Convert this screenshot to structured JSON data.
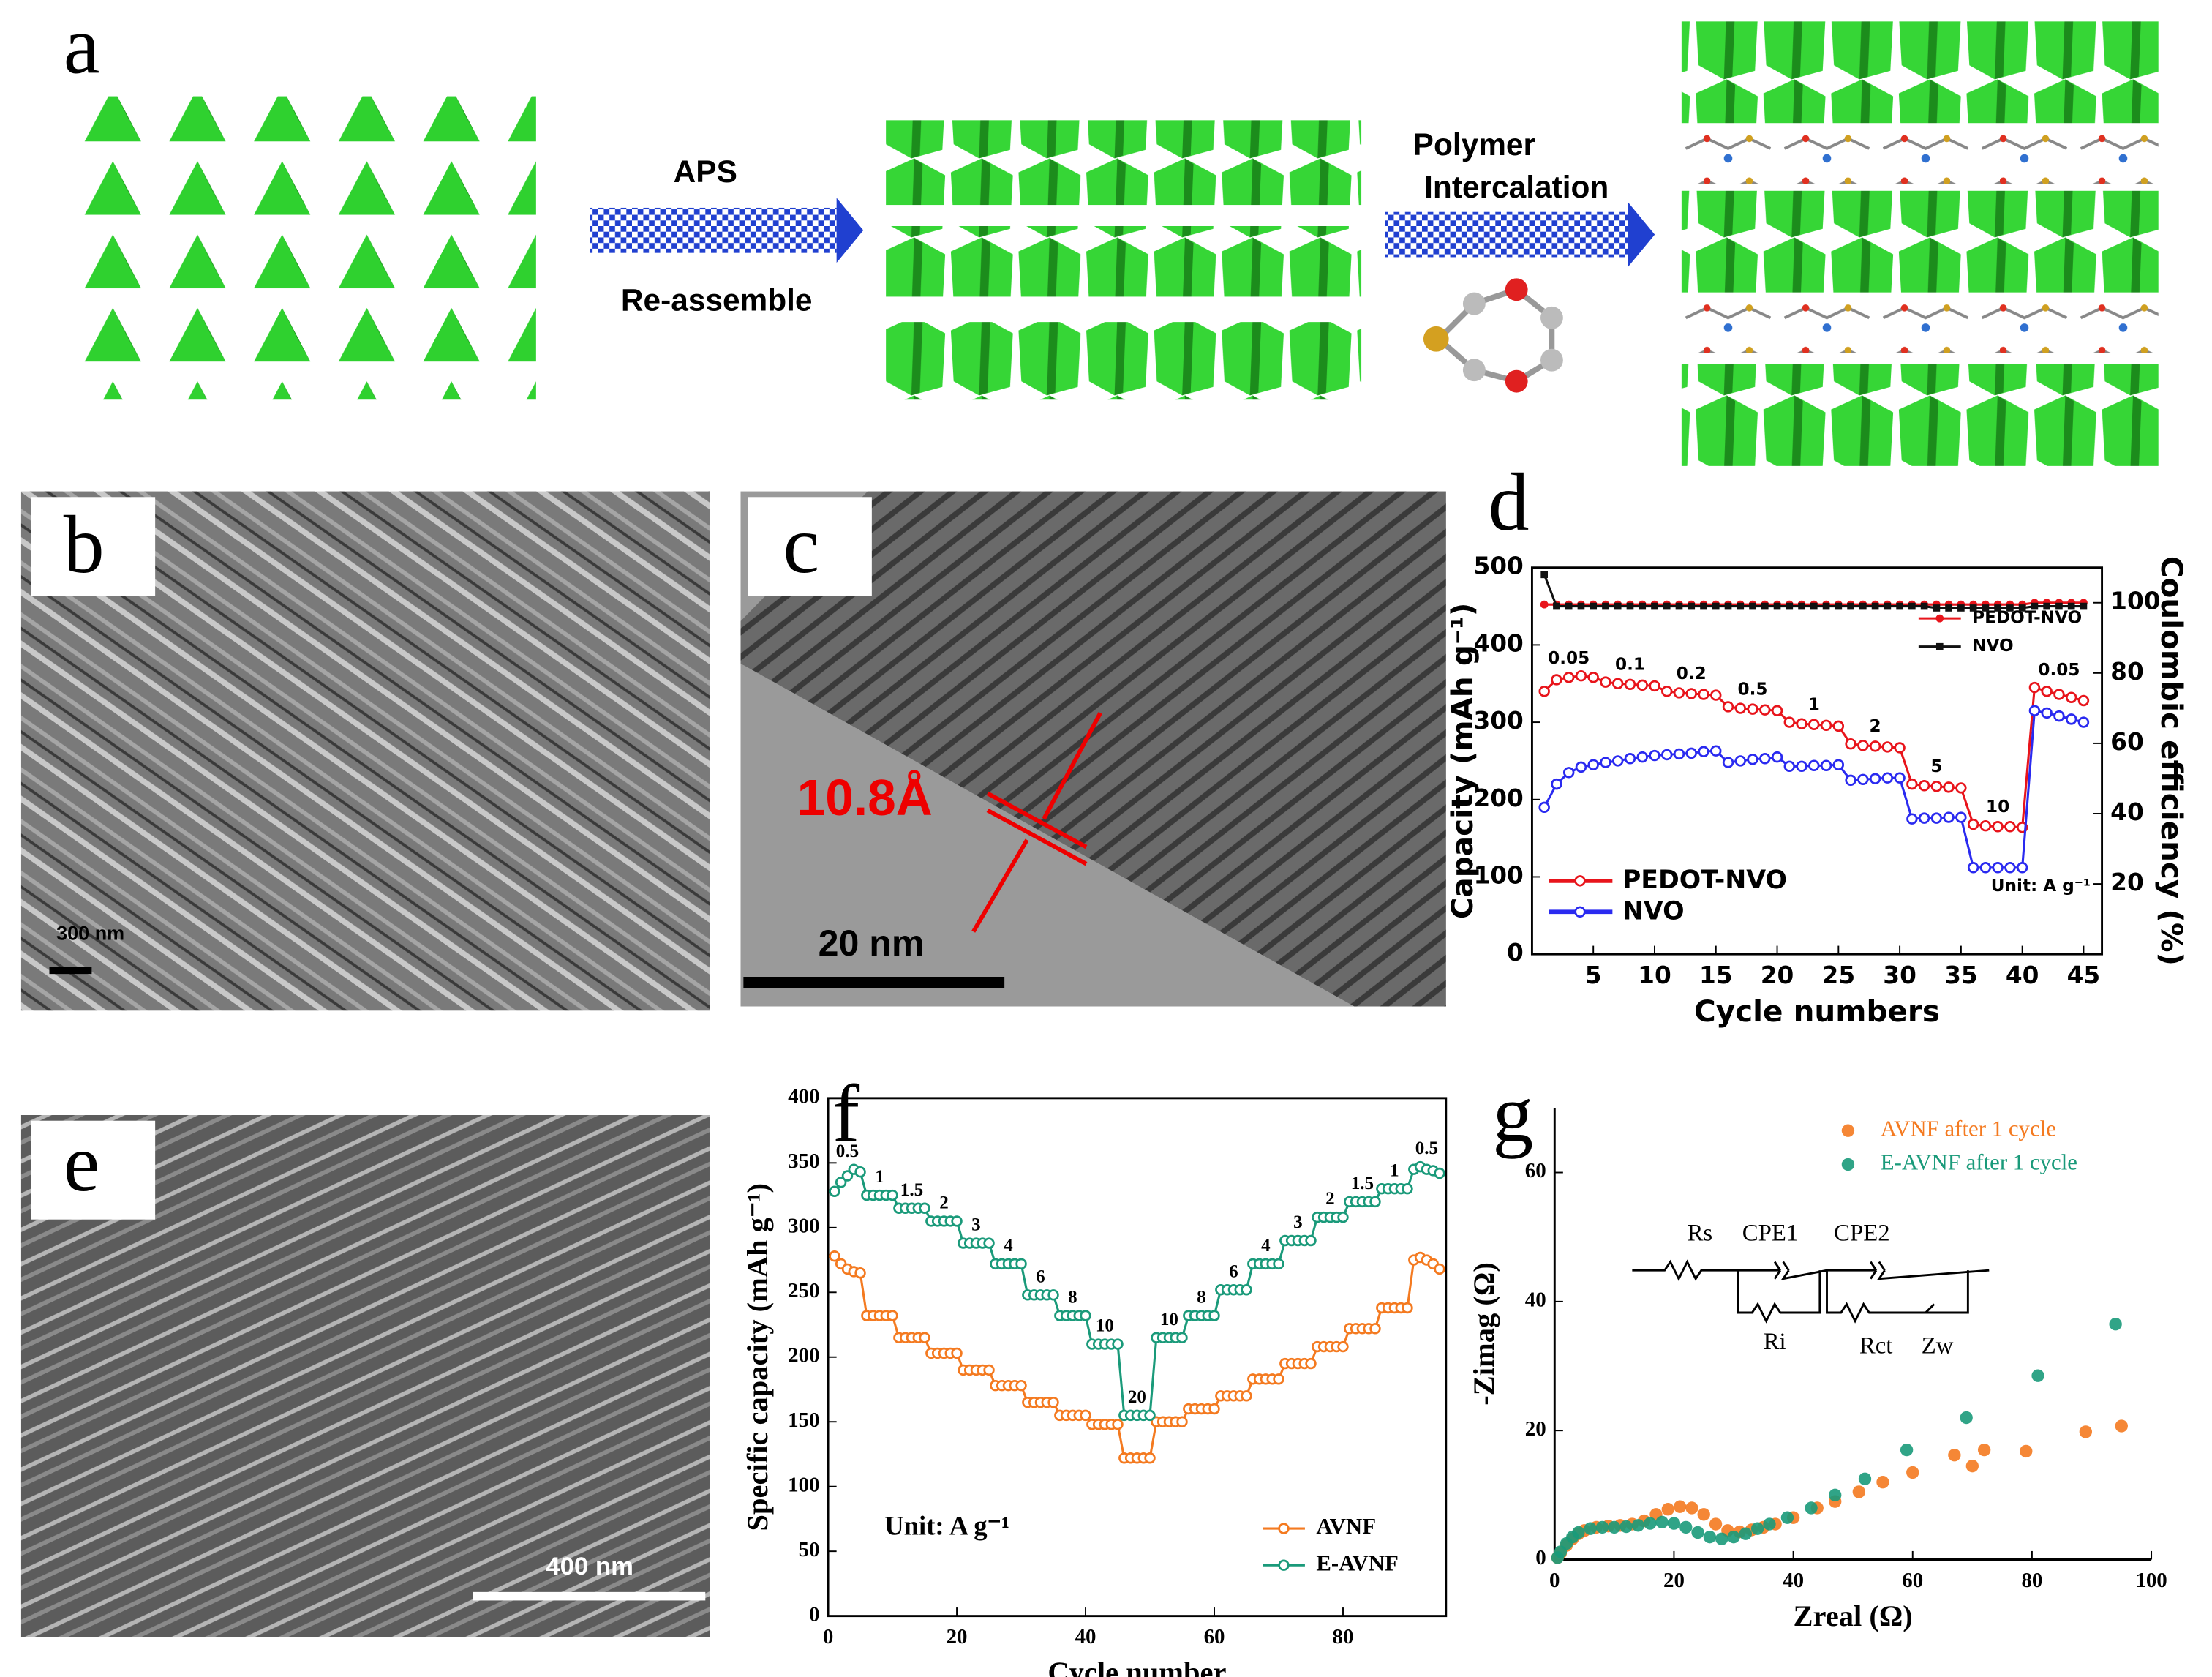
{
  "panel_labels": [
    "a",
    "b",
    "c",
    "d",
    "e",
    "f",
    "g"
  ],
  "scheme": {
    "step1_above": "APS",
    "step1_below": "Re-assemble",
    "step2_line1": "Polymer",
    "step2_line2": "Intercalation"
  },
  "images": {
    "b": {
      "scale": "300 nm"
    },
    "c": {
      "spacing": "10.8Å",
      "scale": "20 nm"
    },
    "e": {
      "scale": "400 nm"
    }
  },
  "chart_data": [
    {
      "type": "line",
      "xlabel": "Cycle numbers",
      "ylabel": "Capacity (mAh g⁻¹)",
      "y2label": "Coulombic efficiency (%)",
      "x": [
        1,
        2,
        3,
        4,
        5,
        6,
        7,
        8,
        9,
        10,
        11,
        12,
        13,
        14,
        15,
        16,
        17,
        18,
        19,
        20,
        21,
        22,
        23,
        24,
        25,
        26,
        27,
        28,
        29,
        30,
        31,
        32,
        33,
        34,
        35,
        36,
        37,
        38,
        39,
        40,
        41,
        42,
        43,
        44,
        45
      ],
      "xlim": [
        0,
        46.5
      ],
      "xticks": [
        5,
        10,
        15,
        20,
        25,
        30,
        35,
        40,
        45
      ],
      "ylim": [
        0,
        500
      ],
      "yticks": [
        0,
        100,
        200,
        300,
        400,
        500
      ],
      "y2lim": [
        0,
        110
      ],
      "y2ticks": [
        20,
        40,
        60,
        80,
        100
      ],
      "series": [
        {
          "name": "PEDOT-NVO",
          "color": "#e8141b",
          "marker": "circle",
          "legend": "lower left",
          "values": [
            340,
            355,
            358,
            360,
            358,
            352,
            350,
            349,
            348,
            347,
            340,
            338,
            337,
            336,
            335,
            320,
            318,
            317,
            316,
            315,
            300,
            298,
            297,
            296,
            295,
            272,
            270,
            269,
            268,
            267,
            220,
            218,
            217,
            216,
            215,
            168,
            166,
            165,
            165,
            164,
            345,
            340,
            336,
            332,
            328
          ]
        },
        {
          "name": "NVO",
          "color": "#2a2af0",
          "marker": "circle",
          "legend": "lower left",
          "values": [
            190,
            220,
            235,
            242,
            245,
            248,
            250,
            253,
            255,
            257,
            258,
            259,
            260,
            262,
            263,
            248,
            250,
            252,
            253,
            255,
            243,
            243,
            244,
            244,
            245,
            225,
            226,
            227,
            228,
            228,
            175,
            176,
            176,
            177,
            177,
            112,
            112,
            112,
            112,
            112,
            315,
            312,
            308,
            304,
            300
          ]
        },
        {
          "name": "PEDOT-NVO",
          "color": "#e8141b",
          "marker": "dot",
          "axis": "y2",
          "legend": "upper right",
          "values": [
            99.5,
            99.5,
            99.5,
            99.5,
            99.5,
            99.5,
            99.5,
            99.5,
            99.5,
            99.5,
            99.5,
            99.5,
            99.5,
            99.5,
            99.5,
            99.5,
            99.5,
            99.5,
            99.5,
            99.5,
            99.5,
            99.5,
            99.5,
            99.5,
            99.5,
            99.5,
            99.5,
            99.5,
            99.5,
            99.5,
            99.5,
            99.5,
            99.5,
            99.5,
            99.5,
            99.5,
            99.5,
            99.5,
            99.5,
            99.5,
            100,
            100,
            100,
            100,
            100
          ]
        },
        {
          "name": "NVO",
          "color": "#111111",
          "marker": "square",
          "axis": "y2",
          "legend": "upper right",
          "values": [
            108,
            99,
            99,
            99,
            99,
            99,
            99,
            99,
            99,
            99,
            99,
            99,
            99,
            99,
            99,
            99,
            99,
            99,
            99,
            99,
            99,
            99,
            99,
            99,
            99,
            99,
            99,
            99,
            99,
            99,
            99,
            99,
            98.5,
            98.5,
            98.5,
            98.5,
            98.5,
            98.5,
            98.5,
            98.5,
            99,
            99,
            99,
            99,
            99
          ]
        }
      ],
      "annotations": [
        "0.05",
        "0.1",
        "0.2",
        "0.5",
        "1",
        "2",
        "5",
        "10",
        "0.05"
      ],
      "unit_note": "Unit: A g⁻¹"
    },
    {
      "type": "line",
      "xlabel": "Cycle number",
      "ylabel": "Specific capacity (mAh g⁻¹)",
      "x": [
        1,
        2,
        3,
        4,
        5,
        6,
        7,
        8,
        9,
        10,
        11,
        12,
        13,
        14,
        15,
        16,
        17,
        18,
        19,
        20,
        21,
        22,
        23,
        24,
        25,
        26,
        27,
        28,
        29,
        30,
        31,
        32,
        33,
        34,
        35,
        36,
        37,
        38,
        39,
        40,
        41,
        42,
        43,
        44,
        45,
        46,
        47,
        48,
        49,
        50,
        51,
        52,
        53,
        54,
        55,
        56,
        57,
        58,
        59,
        60,
        61,
        62,
        63,
        64,
        65,
        66,
        67,
        68,
        69,
        70,
        71,
        72,
        73,
        74,
        75,
        76,
        77,
        78,
        79,
        80,
        81,
        82,
        83,
        84,
        85,
        86,
        87,
        88,
        89,
        90,
        91,
        92,
        93,
        94,
        95
      ],
      "xlim": [
        0,
        96
      ],
      "xticks": [
        0,
        20,
        40,
        60,
        80
      ],
      "ylim": [
        0,
        400
      ],
      "yticks": [
        0,
        50,
        100,
        150,
        200,
        250,
        300,
        350,
        400
      ],
      "legend": "lower right",
      "series": [
        {
          "name": "AVNF",
          "color": "#f47a20",
          "marker": "circle",
          "values": [
            278,
            272,
            268,
            266,
            265,
            232,
            232,
            232,
            232,
            232,
            215,
            215,
            215,
            215,
            215,
            203,
            203,
            203,
            203,
            203,
            190,
            190,
            190,
            190,
            190,
            178,
            178,
            178,
            178,
            178,
            165,
            165,
            165,
            165,
            165,
            155,
            155,
            155,
            155,
            155,
            148,
            148,
            148,
            148,
            148,
            122,
            122,
            122,
            122,
            122,
            150,
            150,
            150,
            150,
            150,
            160,
            160,
            160,
            160,
            160,
            170,
            170,
            170,
            170,
            170,
            183,
            183,
            183,
            183,
            183,
            195,
            195,
            195,
            195,
            195,
            208,
            208,
            208,
            208,
            208,
            222,
            222,
            222,
            222,
            222,
            238,
            238,
            238,
            238,
            238,
            275,
            277,
            275,
            272,
            268
          ]
        },
        {
          "name": "E-AVNF",
          "color": "#1a9a7a",
          "marker": "circle",
          "values": [
            328,
            335,
            340,
            345,
            343,
            325,
            325,
            325,
            325,
            325,
            315,
            315,
            315,
            315,
            315,
            305,
            305,
            305,
            305,
            305,
            288,
            288,
            288,
            288,
            288,
            272,
            272,
            272,
            272,
            272,
            248,
            248,
            248,
            248,
            248,
            232,
            232,
            232,
            232,
            232,
            210,
            210,
            210,
            210,
            210,
            155,
            155,
            155,
            155,
            155,
            215,
            215,
            215,
            215,
            215,
            232,
            232,
            232,
            232,
            232,
            252,
            252,
            252,
            252,
            252,
            272,
            272,
            272,
            272,
            272,
            290,
            290,
            290,
            290,
            290,
            308,
            308,
            308,
            308,
            308,
            320,
            320,
            320,
            320,
            320,
            330,
            330,
            330,
            330,
            330,
            345,
            347,
            345,
            344,
            342
          ]
        }
      ],
      "annotations": [
        "0.5",
        "1",
        "1.5",
        "2",
        "3",
        "4",
        "6",
        "8",
        "10",
        "20",
        "10",
        "8",
        "6",
        "4",
        "3",
        "2",
        "1.5",
        "1",
        "0.5"
      ],
      "unit_note": "Unit: A g⁻¹"
    },
    {
      "type": "scatter",
      "xlabel": "Zreal (Ω)",
      "ylabel": "-Zimag (Ω)",
      "xlim": [
        0,
        100
      ],
      "xticks": [
        0,
        20,
        40,
        60,
        80,
        100
      ],
      "ylim": [
        0,
        70
      ],
      "yticks": [
        0,
        20,
        40,
        60
      ],
      "legend": "upper right",
      "series": [
        {
          "name": "AVNF after 1 cycle",
          "color": "#f47a20",
          "x": [
            0.5,
            1,
            2,
            3,
            4,
            5,
            7,
            9,
            11,
            13,
            15,
            17,
            19,
            21,
            23,
            25,
            27,
            29,
            31,
            33,
            35,
            37,
            40,
            44,
            47,
            51,
            55,
            60,
            67,
            70,
            72,
            79,
            89,
            95
          ],
          "values": [
            0.3,
            1,
            2.2,
            3.2,
            4,
            4.5,
            5,
            5.2,
            5.3,
            5.5,
            6,
            7,
            7.8,
            8.2,
            8,
            7,
            5.5,
            4.5,
            4.3,
            4.6,
            5,
            5.5,
            6.5,
            8,
            9,
            10.5,
            12,
            13.5,
            16.2,
            14.5,
            17,
            16.8,
            19.8,
            20.7
          ]
        },
        {
          "name": "E-AVNF after 1 cycle",
          "color": "#1a9a7a",
          "x": [
            0.5,
            1,
            2,
            3,
            4,
            6,
            8,
            10,
            12,
            14,
            16,
            18,
            20,
            22,
            24,
            26,
            28,
            30,
            32,
            34,
            36,
            39,
            43,
            47,
            52,
            59,
            69,
            81,
            94
          ],
          "values": [
            0.3,
            1.2,
            2.5,
            3.5,
            4.2,
            4.8,
            5,
            5,
            5.1,
            5.3,
            5.6,
            5.8,
            5.6,
            5,
            4.2,
            3.5,
            3.2,
            3.5,
            4,
            4.8,
            5.5,
            6.5,
            8,
            10,
            12.5,
            17,
            22,
            28.5,
            36.5
          ]
        }
      ],
      "inset_labels": [
        "Rs",
        "CPE1",
        "CPE2",
        "Ri",
        "Rct",
        "Zw"
      ]
    }
  ]
}
